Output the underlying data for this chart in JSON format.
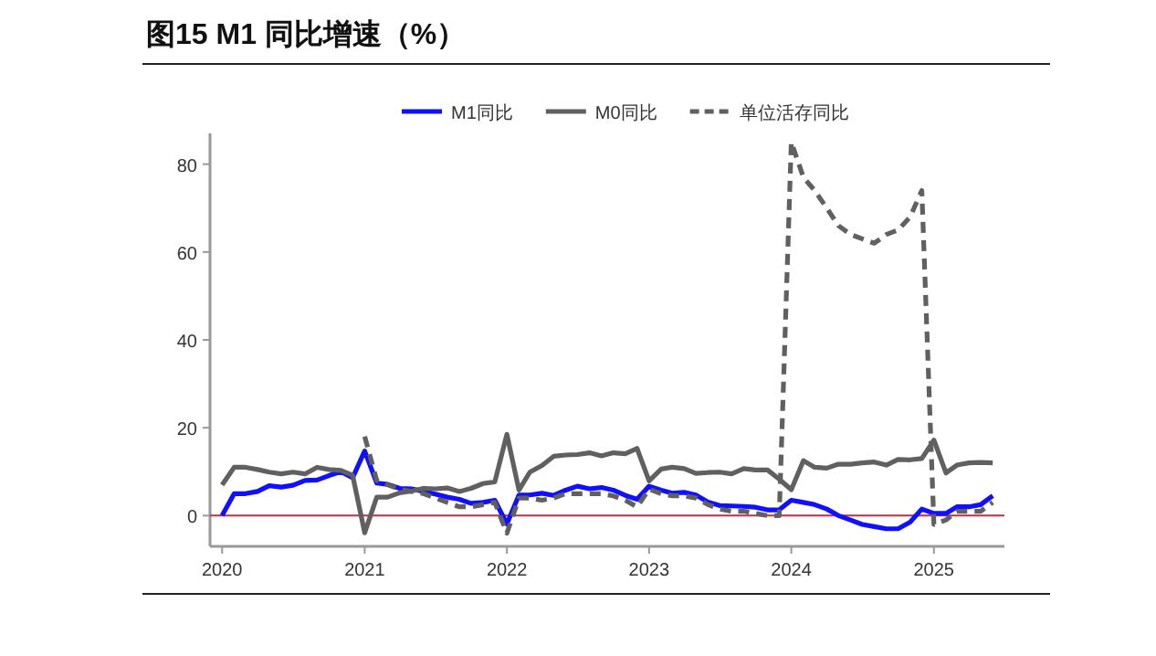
{
  "chart_data": {
    "type": "line",
    "title": "图15 M1 同比增速（%）",
    "x": [
      "2020-01",
      "2020-02",
      "2020-03",
      "2020-04",
      "2020-05",
      "2020-06",
      "2020-07",
      "2020-08",
      "2020-09",
      "2020-10",
      "2020-11",
      "2020-12",
      "2021-01",
      "2021-02",
      "2021-03",
      "2021-04",
      "2021-05",
      "2021-06",
      "2021-07",
      "2021-08",
      "2021-09",
      "2021-10",
      "2021-11",
      "2021-12",
      "2022-01",
      "2022-02",
      "2022-03",
      "2022-04",
      "2022-05",
      "2022-06",
      "2022-07",
      "2022-08",
      "2022-09",
      "2022-10",
      "2022-11",
      "2022-12",
      "2023-01",
      "2023-02",
      "2023-03",
      "2023-04",
      "2023-05",
      "2023-06",
      "2023-07",
      "2023-08",
      "2023-09",
      "2023-10",
      "2023-11",
      "2023-12",
      "2024-01",
      "2024-02",
      "2024-03",
      "2024-04",
      "2024-05",
      "2024-06",
      "2024-07",
      "2024-08",
      "2024-09",
      "2024-10",
      "2024-11",
      "2024-12",
      "2025-01",
      "2025-02",
      "2025-03",
      "2025-04",
      "2025-05",
      "2025-06"
    ],
    "series": [
      {
        "name": "M1同比",
        "color": "#1010ff",
        "line_style": "solid",
        "values": [
          0,
          5,
          5,
          5.5,
          6.8,
          6.5,
          6.9,
          8,
          8.1,
          9.1,
          10,
          8.6,
          14.7,
          7.4,
          7.1,
          6.2,
          6.1,
          5.5,
          4.9,
          4.2,
          3.7,
          2.8,
          3,
          3.5,
          -1.9,
          4.7,
          4.7,
          5.1,
          4.6,
          5.8,
          6.7,
          6.1,
          6.4,
          5.8,
          4.6,
          3.7,
          6.7,
          5.8,
          5.1,
          5.3,
          4.7,
          3.1,
          2.3,
          2.2,
          2.1,
          1.9,
          1.3,
          1.3,
          3.5,
          3,
          2.5,
          1.5,
          0,
          -1,
          -2,
          -2.5,
          -3,
          -3,
          -1.5,
          1.5,
          0.5,
          0.5,
          2,
          2,
          2.5,
          4.5
        ]
      },
      {
        "name": "M0同比",
        "color": "#606060",
        "line_style": "solid",
        "values": [
          7,
          11,
          11,
          10.5,
          9.9,
          9.5,
          9.9,
          9.5,
          11,
          10.5,
          10.3,
          9.2,
          -3.9,
          4.2,
          4.2,
          5.2,
          5.6,
          6.2,
          6.1,
          6.3,
          5.5,
          6.2,
          7.3,
          7.7,
          18.5,
          5.8,
          9.9,
          11.4,
          13.5,
          13.8,
          13.9,
          14.3,
          13.6,
          14.3,
          14.1,
          15.3,
          7.9,
          10.6,
          11,
          10.7,
          9.6,
          9.8,
          9.9,
          9.5,
          10.7,
          10.4,
          10.4,
          8.3,
          5.9,
          12.5,
          11,
          10.8,
          11.7,
          11.7,
          12,
          12.2,
          11.5,
          12.8,
          12.7,
          13,
          17.2,
          9.7,
          11.5,
          12,
          12.1,
          12
        ]
      },
      {
        "name": "单位活存同比",
        "color": "#606060",
        "line_style": "dashed",
        "values": [
          null,
          null,
          null,
          null,
          null,
          null,
          null,
          null,
          null,
          null,
          null,
          null,
          18,
          8,
          7,
          6,
          5.5,
          5,
          4,
          3,
          2,
          2,
          2.5,
          3,
          -4,
          4,
          4,
          3.5,
          4,
          5,
          5,
          5,
          5,
          4.5,
          3.5,
          2,
          6,
          5,
          4.5,
          4.5,
          4,
          2.5,
          1.5,
          1,
          1,
          0.5,
          0,
          0,
          85,
          77,
          74,
          70,
          66,
          64,
          63,
          62,
          64,
          65,
          68,
          74,
          -2,
          -1,
          1,
          1,
          1,
          3
        ]
      }
    ],
    "xlim": [
      "2019-12",
      "2025-07"
    ],
    "xticks": [
      {
        "value": "2020-01",
        "label": "2020"
      },
      {
        "value": "2021-01",
        "label": "2021"
      },
      {
        "value": "2022-01",
        "label": "2022"
      },
      {
        "value": "2023-01",
        "label": "2023"
      },
      {
        "value": "2024-01",
        "label": "2024"
      },
      {
        "value": "2025-01",
        "label": "2025"
      }
    ],
    "ylim": [
      -7,
      87
    ],
    "yticks": [
      0,
      20,
      40,
      60,
      80
    ],
    "ref_lines": [
      {
        "axis": "y",
        "value": 0,
        "color": "#c0304a"
      }
    ],
    "grid": false,
    "legend": "top",
    "marker": "none"
  }
}
